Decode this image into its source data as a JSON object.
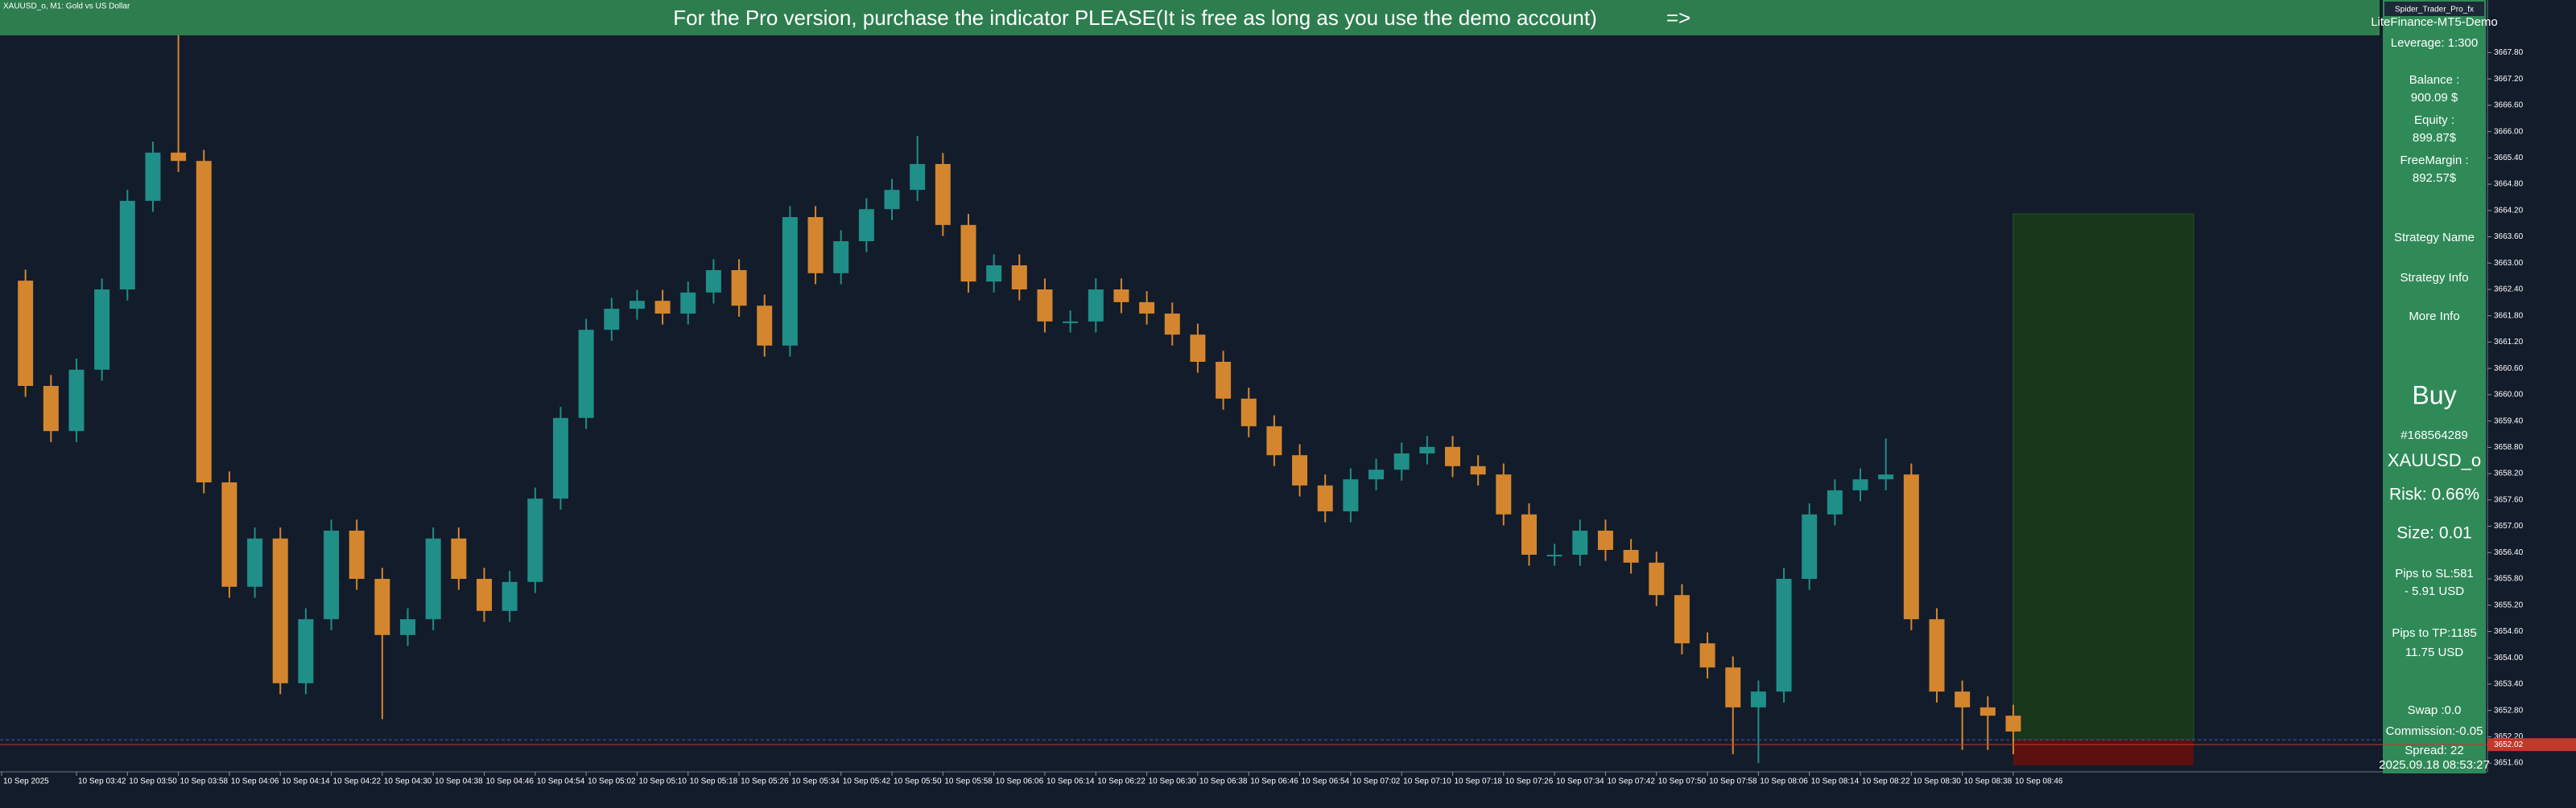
{
  "symbol_label": "XAUUSD_o, M1: Gold vs US Dollar",
  "banner": {
    "text": "For the Pro version, purchase the indicator PLEASE(It is free as long as you use the demo account)",
    "arrow": "=>"
  },
  "panel": {
    "title": "Spider_Trader_Pro_fx",
    "server": "LiteFinance-MT5-Demo",
    "leverage": "Leverage: 1:300",
    "balance_label": "Balance :",
    "balance": "900.09 $",
    "equity_label": "Equity :",
    "equity": "899.87$",
    "free_margin_label": "FreeMargin :",
    "free_margin": "892.57$",
    "buttons": [
      "Strategy Name",
      "Strategy Info",
      "More Info"
    ],
    "side": "Buy",
    "ticket": "#168564289",
    "symbol": "XAUUSD_o",
    "risk": "Risk: 0.66%",
    "size": "Size: 0.01",
    "pips_sl": "Pips to SL:581",
    "sl_usd": "- 5.91 USD",
    "pips_tp": "Pips to TP:1185",
    "tp_usd": "11.75 USD",
    "swap": "Swap :0.0",
    "commission": "Commission:-0.05",
    "spread": "Spread: 22",
    "time": "2025.09.18 08:53:27"
  },
  "chart_data": {
    "type": "candlestick",
    "x": [
      "03:34",
      "03:38",
      "03:42",
      "03:46",
      "03:50",
      "03:54",
      "03:58",
      "04:02",
      "04:06",
      "04:10",
      "04:14",
      "04:18",
      "04:22",
      "04:26",
      "04:30",
      "04:34",
      "04:38",
      "04:42",
      "04:46",
      "04:50",
      "04:54",
      "04:58",
      "05:02",
      "05:06",
      "05:10",
      "05:14",
      "05:18",
      "05:22",
      "05:26",
      "05:30",
      "05:34",
      "05:38",
      "05:42",
      "05:46",
      "05:50",
      "05:54",
      "05:58",
      "06:02",
      "06:06",
      "06:10",
      "06:14",
      "06:18",
      "06:22",
      "06:26",
      "06:30",
      "06:34",
      "06:38",
      "06:42",
      "06:46",
      "06:50",
      "06:54",
      "06:58",
      "07:02",
      "07:06",
      "07:10",
      "07:14",
      "07:18",
      "07:22",
      "07:26",
      "07:30",
      "07:34",
      "07:38",
      "07:42",
      "07:46",
      "07:50",
      "07:54",
      "07:58",
      "08:02",
      "08:06",
      "08:10",
      "08:14",
      "08:18",
      "08:22",
      "08:26",
      "08:30",
      "08:34",
      "08:38",
      "08:42",
      "08:46"
    ],
    "open": [
      3662.6,
      3660.2,
      3659.17,
      3660.57,
      3662.4,
      3664.42,
      3665.52,
      3665.33,
      3658.0,
      3655.62,
      3656.72,
      3653.42,
      3654.88,
      3656.9,
      3655.8,
      3654.52,
      3654.88,
      3656.72,
      3655.8,
      3655.07,
      3655.73,
      3657.63,
      3659.47,
      3661.48,
      3661.96,
      3662.14,
      3661.85,
      3662.33,
      3662.84,
      3662.03,
      3661.12,
      3664.05,
      3662.77,
      3663.5,
      3664.23,
      3664.67,
      3665.26,
      3663.87,
      3662.58,
      3662.95,
      3662.4,
      3661.67,
      3661.67,
      3662.4,
      3662.11,
      3661.85,
      3661.37,
      3660.75,
      3659.91,
      3659.28,
      3658.62,
      3657.93,
      3657.34,
      3658.07,
      3658.29,
      3658.66,
      3658.81,
      3658.37,
      3658.18,
      3657.27,
      3656.35,
      3656.35,
      3656.9,
      3656.46,
      3656.17,
      3655.43,
      3654.33,
      3653.78,
      3652.87,
      3653.23,
      3655.8,
      3657.27,
      3657.82,
      3658.07,
      3658.18,
      3654.88,
      3653.23,
      3652.87,
      3652.68
    ],
    "high": [
      3662.85,
      3660.45,
      3660.82,
      3662.65,
      3664.67,
      3665.77,
      3668.3,
      3665.58,
      3658.25,
      3656.97,
      3656.97,
      3655.13,
      3657.15,
      3657.15,
      3656.05,
      3655.13,
      3656.97,
      3656.97,
      3656.05,
      3655.98,
      3657.88,
      3659.72,
      3661.73,
      3662.21,
      3662.39,
      3662.39,
      3662.58,
      3663.09,
      3663.09,
      3662.28,
      3664.3,
      3664.3,
      3663.75,
      3664.48,
      3664.92,
      3665.9,
      3665.51,
      3664.12,
      3663.2,
      3663.2,
      3662.65,
      3661.92,
      3662.65,
      3662.65,
      3662.36,
      3662.1,
      3661.62,
      3661.0,
      3660.16,
      3659.53,
      3658.87,
      3658.18,
      3658.32,
      3658.54,
      3658.91,
      3659.06,
      3659.06,
      3658.62,
      3658.43,
      3657.52,
      3656.6,
      3657.15,
      3657.15,
      3656.71,
      3656.42,
      3655.68,
      3654.58,
      3654.03,
      3653.48,
      3656.05,
      3657.52,
      3658.07,
      3658.32,
      3659.0,
      3658.43,
      3655.13,
      3653.48,
      3653.12,
      3652.93
    ],
    "low": [
      3659.95,
      3658.92,
      3658.92,
      3660.32,
      3662.15,
      3664.17,
      3665.08,
      3657.75,
      3655.37,
      3655.37,
      3653.17,
      3653.17,
      3654.63,
      3655.55,
      3652.6,
      3654.27,
      3654.63,
      3655.55,
      3654.82,
      3654.82,
      3655.48,
      3657.38,
      3659.22,
      3661.23,
      3661.71,
      3661.6,
      3661.6,
      3662.08,
      3661.78,
      3660.87,
      3660.87,
      3662.52,
      3662.52,
      3663.25,
      3663.98,
      3664.42,
      3663.62,
      3662.33,
      3662.33,
      3662.15,
      3661.42,
      3661.42,
      3661.42,
      3661.86,
      3661.6,
      3661.12,
      3660.5,
      3659.66,
      3659.03,
      3658.37,
      3657.68,
      3657.09,
      3657.09,
      3657.82,
      3658.04,
      3658.41,
      3658.12,
      3657.93,
      3657.02,
      3656.1,
      3656.1,
      3656.1,
      3656.21,
      3655.92,
      3655.18,
      3654.08,
      3653.53,
      3651.8,
      3651.6,
      3652.98,
      3655.55,
      3657.02,
      3657.57,
      3657.82,
      3654.63,
      3652.98,
      3651.9,
      3651.9,
      3651.8
    ],
    "close": [
      3660.2,
      3659.17,
      3660.57,
      3662.4,
      3664.42,
      3665.52,
      3665.33,
      3658.0,
      3655.62,
      3656.72,
      3653.42,
      3654.88,
      3656.9,
      3655.8,
      3654.52,
      3654.88,
      3656.72,
      3655.8,
      3655.07,
      3655.73,
      3657.63,
      3659.47,
      3661.48,
      3661.96,
      3662.14,
      3661.85,
      3662.33,
      3662.84,
      3662.03,
      3661.12,
      3664.05,
      3662.77,
      3663.5,
      3664.23,
      3664.67,
      3665.26,
      3663.87,
      3662.58,
      3662.95,
      3662.4,
      3661.67,
      3661.67,
      3662.4,
      3662.11,
      3661.85,
      3661.37,
      3660.75,
      3659.91,
      3659.28,
      3658.62,
      3657.93,
      3657.34,
      3658.07,
      3658.29,
      3658.66,
      3658.81,
      3658.37,
      3658.18,
      3657.27,
      3656.35,
      3656.35,
      3656.9,
      3656.46,
      3656.17,
      3655.43,
      3654.33,
      3653.78,
      3652.87,
      3653.23,
      3655.8,
      3657.27,
      3657.82,
      3658.07,
      3658.18,
      3654.88,
      3653.23,
      3652.87,
      3652.68,
      3652.32
    ],
    "up_color": "#1f8f88",
    "down_color": "#d4862e",
    "xlim": [
      "03:30",
      "09:44"
    ],
    "xticks": [
      "10 Sep 2025",
      "10 Sep 03:42",
      "10 Sep 03:50",
      "10 Sep 03:58",
      "10 Sep 04:06",
      "10 Sep 04:14",
      "10 Sep 04:22",
      "10 Sep 04:30",
      "10 Sep 04:38",
      "10 Sep 04:46",
      "10 Sep 04:54",
      "10 Sep 05:02",
      "10 Sep 05:10",
      "10 Sep 05:18",
      "10 Sep 05:26",
      "10 Sep 05:34",
      "10 Sep 05:42",
      "10 Sep 05:50",
      "10 Sep 05:58",
      "10 Sep 06:06",
      "10 Sep 06:14",
      "10 Sep 06:22",
      "10 Sep 06:30",
      "10 Sep 06:38",
      "10 Sep 06:46",
      "10 Sep 06:54",
      "10 Sep 07:02",
      "10 Sep 07:10",
      "10 Sep 07:18",
      "10 Sep 07:26",
      "10 Sep 07:34",
      "10 Sep 07:42",
      "10 Sep 07:50",
      "10 Sep 07:58",
      "10 Sep 08:06",
      "10 Sep 08:14",
      "10 Sep 08:22",
      "10 Sep 08:30",
      "10 Sep 08:38",
      "10 Sep 08:46"
    ],
    "ylim": [
      3651.4,
      3669.0
    ],
    "yticks": [
      {
        "value": 3651.6,
        "label": "3651.60"
      },
      {
        "value": 3652.2,
        "label": "3652.20"
      },
      {
        "value": 3652.8,
        "label": "3652.80"
      },
      {
        "value": 3653.4,
        "label": "3653.40"
      },
      {
        "value": 3654.0,
        "label": "3654.00"
      },
      {
        "value": 3654.6,
        "label": "3654.60"
      },
      {
        "value": 3655.2,
        "label": "3655.20"
      },
      {
        "value": 3655.8,
        "label": "3655.80"
      },
      {
        "value": 3656.4,
        "label": "3656.40"
      },
      {
        "value": 3657.0,
        "label": "3657.00"
      },
      {
        "value": 3657.6,
        "label": "3657.60"
      },
      {
        "value": 3658.2,
        "label": "3658.20"
      },
      {
        "value": 3658.8,
        "label": "3658.80"
      },
      {
        "value": 3659.4,
        "label": "3659.40"
      },
      {
        "value": 3660.0,
        "label": "3660.00"
      },
      {
        "value": 3660.6,
        "label": "3660.60"
      },
      {
        "value": 3661.2,
        "label": "3661.20"
      },
      {
        "value": 3661.8,
        "label": "3661.80"
      },
      {
        "value": 3662.4,
        "label": "3662.40"
      },
      {
        "value": 3663.0,
        "label": "3663.00"
      },
      {
        "value": 3663.6,
        "label": "3663.60"
      },
      {
        "value": 3664.2,
        "label": "3664.20"
      },
      {
        "value": 3664.8,
        "label": "3664.80"
      },
      {
        "value": 3665.4,
        "label": "3665.40"
      },
      {
        "value": 3666.0,
        "label": "3666.00"
      },
      {
        "value": 3666.6,
        "label": "3666.60"
      },
      {
        "value": 3667.2,
        "label": "3667.20"
      },
      {
        "value": 3667.8,
        "label": "3667.80"
      }
    ],
    "position": {
      "tp": 3664.12,
      "entry": 3652.13,
      "sl": 3651.55
    },
    "bid": {
      "value": 3652.02,
      "label": "3652.02"
    },
    "grid": false
  }
}
